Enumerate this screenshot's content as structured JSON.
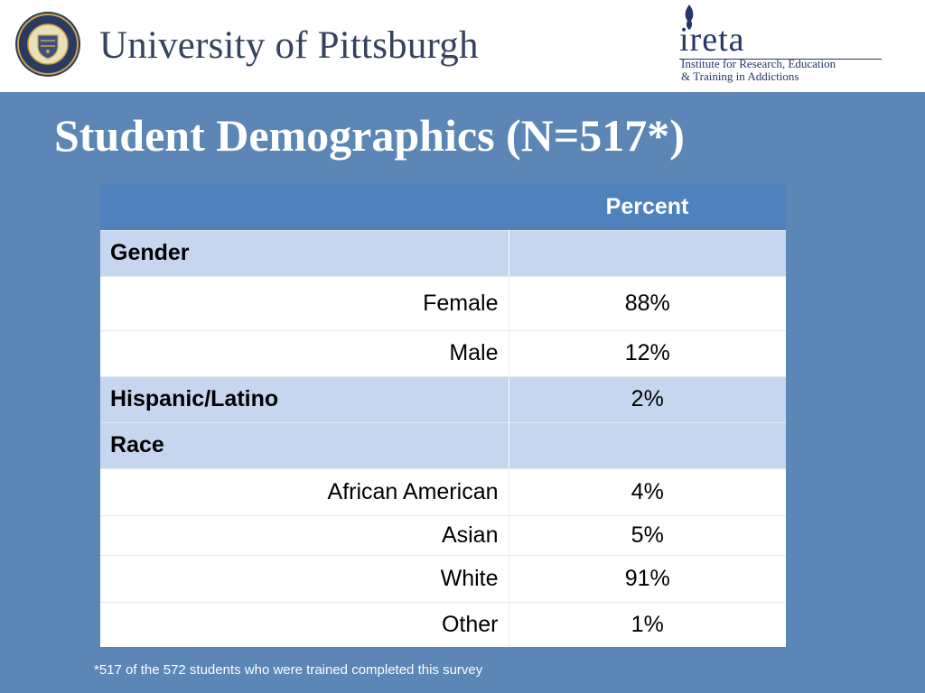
{
  "header": {
    "university_name": "University of Pittsburgh",
    "ireta_name": "ireta",
    "ireta_tagline_line1": "Institute for Research, Education",
    "ireta_tagline_line2": "& Training in Addictions"
  },
  "slide": {
    "title": "Student Demographics (N=517*)",
    "footnote": "*517 of the 572 students who were trained completed this survey"
  },
  "table": {
    "header": {
      "label": "",
      "value": "Percent"
    },
    "rows": [
      {
        "type": "section",
        "label": "Gender",
        "value": ""
      },
      {
        "type": "item",
        "label": "Female",
        "value": "88%"
      },
      {
        "type": "item",
        "label": "Male",
        "value": "12%"
      },
      {
        "type": "section",
        "label": "Hispanic/Latino",
        "value": "2%"
      },
      {
        "type": "section",
        "label": "Race",
        "value": ""
      },
      {
        "type": "item",
        "label": "African American",
        "value": "4%"
      },
      {
        "type": "item",
        "label": "Asian",
        "value": "5%"
      },
      {
        "type": "item",
        "label": "White",
        "value": "91%"
      },
      {
        "type": "item",
        "label": "Other",
        "value": "1%"
      }
    ]
  },
  "colors": {
    "slide_background": "#5b86b5",
    "table_header": "#4f81bd",
    "section_row": "#c6d6ef",
    "item_row": "#ffffff",
    "logo_navy": "#26356a",
    "seal_gold": "#c9a449"
  }
}
